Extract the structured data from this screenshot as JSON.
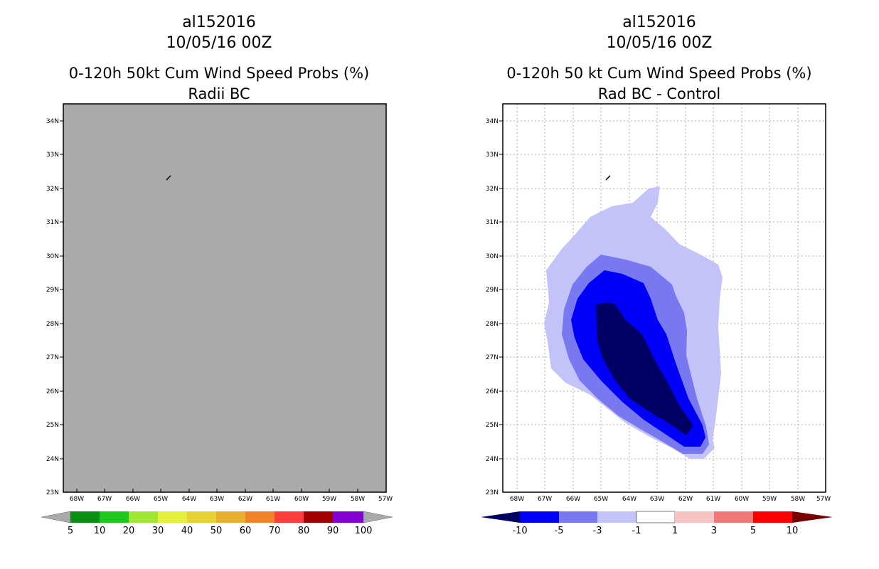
{
  "panels": [
    {
      "storm_id": "al152016",
      "date": "10/05/16 00Z",
      "title": "0-120h 50kt Cum Wind Speed Probs (%)",
      "subtitle": "Radii BC",
      "lat_labels": [
        "34N",
        "33N",
        "32N",
        "31N",
        "30N",
        "29N",
        "28N",
        "27N",
        "26N",
        "25N",
        "24N",
        "23N"
      ],
      "lon_labels": [
        "68W",
        "67W",
        "66W",
        "65W",
        "64W",
        "63W",
        "62W",
        "61W",
        "60W",
        "59W",
        "58W",
        "57W"
      ],
      "fill_color": "#aaaaaa",
      "colorbar": {
        "labels": [
          "5",
          "10",
          "20",
          "30",
          "40",
          "50",
          "60",
          "70",
          "80",
          "90",
          "100"
        ],
        "colors": [
          "#0a8f14",
          "#1ec81e",
          "#a0e632",
          "#e6f03c",
          "#e6d232",
          "#e6af2d",
          "#f08228",
          "#fa3c3c",
          "#a00000",
          "#8200d2"
        ]
      }
    },
    {
      "storm_id": "al152016",
      "date": "10/05/16 00Z",
      "title": "0-120h 50 kt Cum Wind Speed Probs (%)",
      "subtitle": "Rad BC - Control",
      "lat_labels": [
        "34N",
        "33N",
        "32N",
        "31N",
        "30N",
        "29N",
        "28N",
        "27N",
        "26N",
        "25N",
        "24N",
        "23N"
      ],
      "lon_labels": [
        "68W",
        "67W",
        "66W",
        "65W",
        "64W",
        "63W",
        "62W",
        "61W",
        "60W",
        "59W",
        "58W",
        "57W"
      ],
      "contour_levels": [
        {
          "label": "-1 to -3",
          "color": "#c3c3fa"
        },
        {
          "label": "-3 to -5",
          "color": "#7878f0"
        },
        {
          "label": "-5 to -10",
          "color": "#0000fa"
        },
        {
          "label": "< -10",
          "color": "#000064"
        }
      ],
      "colorbar": {
        "labels": [
          "-10",
          "-5",
          "-3",
          "-1",
          "1",
          "3",
          "5",
          "10"
        ],
        "colors": [
          "#000064",
          "#0000fa",
          "#7878f0",
          "#c3c3fa",
          "#ffffff",
          "#fac3c3",
          "#f07878",
          "#fa0000",
          "#780000"
        ]
      }
    }
  ]
}
